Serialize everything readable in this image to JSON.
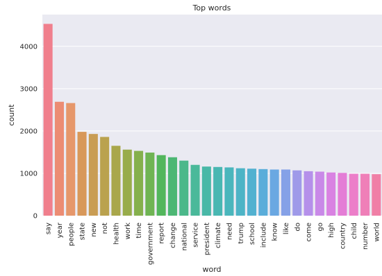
{
  "chart_data": {
    "type": "bar",
    "title": "Top words",
    "xlabel": "word",
    "ylabel": "count",
    "ylim": [
      0,
      4750
    ],
    "yticks": [
      0,
      1000,
      2000,
      3000,
      4000
    ],
    "grid": true,
    "categories": [
      "say",
      "year",
      "people",
      "state",
      "new",
      "not",
      "health",
      "work",
      "time",
      "government",
      "report",
      "change",
      "national",
      "service",
      "president",
      "climate",
      "need",
      "trump",
      "school",
      "include",
      "know",
      "like",
      "do",
      "come",
      "go",
      "high",
      "country",
      "child",
      "number",
      "world"
    ],
    "values": [
      4530,
      2690,
      2660,
      1980,
      1930,
      1860,
      1650,
      1560,
      1530,
      1490,
      1430,
      1380,
      1300,
      1200,
      1160,
      1150,
      1140,
      1120,
      1110,
      1100,
      1090,
      1090,
      1070,
      1050,
      1040,
      1020,
      1010,
      990,
      990,
      980
    ],
    "colors": [
      "#f07f8d",
      "#ec8c73",
      "#e6976b",
      "#d8985a",
      "#c99d54",
      "#baa24e",
      "#a9a74b",
      "#98ac4b",
      "#85b04d",
      "#6fb453",
      "#52b65c",
      "#4db774",
      "#4bb88a",
      "#4ab99a",
      "#49b8a7",
      "#49b7b2",
      "#4ab6bc",
      "#4db4c6",
      "#52b1d0",
      "#5aadda",
      "#6aa8e2",
      "#85a1e7",
      "#9f9ae9",
      "#b590ea",
      "#c989e8",
      "#d982e2",
      "#e47dd6",
      "#ec7ec9",
      "#ef7fb8",
      "#f07fa6"
    ]
  }
}
